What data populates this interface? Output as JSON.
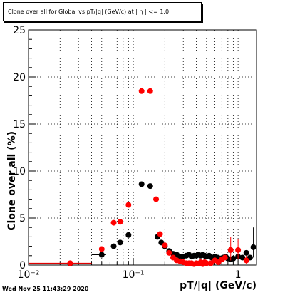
{
  "timestamp": "Wed Nov 25 11:43:29 2020",
  "chart_data": {
    "type": "scatter",
    "title": "Clone  over all for Global vs pT/|q| (GeV/c) at | η | <= 1.0",
    "xlabel": "pT/|q| (GeV/c)",
    "ylabel": "Clone  over all (%)",
    "x_scale": "log",
    "xlim": [
      0.01,
      1.5
    ],
    "ylim": [
      0,
      25
    ],
    "x_ticks": [
      {
        "value": 0.01,
        "label": "10⁻²"
      },
      {
        "value": 0.1,
        "label": "10⁻¹"
      },
      {
        "value": 1,
        "label": "1"
      }
    ],
    "y_ticks": [
      {
        "value": 0,
        "label": "0"
      },
      {
        "value": 5,
        "label": "5"
      },
      {
        "value": 10,
        "label": "10"
      },
      {
        "value": 15,
        "label": "15"
      },
      {
        "value": 20,
        "label": "20"
      },
      {
        "value": 25,
        "label": "25"
      }
    ],
    "grid": true,
    "series": [
      {
        "color": "#000000",
        "points": [
          {
            "x": 0.025,
            "y": 0.15,
            "xlo": 0.01,
            "xhi": 0.04
          },
          {
            "x": 0.05,
            "y": 1.1,
            "xlo": 0.04,
            "xhi": 0.055
          },
          {
            "x": 0.065,
            "y": 2.0
          },
          {
            "x": 0.075,
            "y": 2.4
          },
          {
            "x": 0.09,
            "y": 3.2
          },
          {
            "x": 0.12,
            "y": 8.6
          },
          {
            "x": 0.145,
            "y": 8.4
          },
          {
            "x": 0.17,
            "y": 3.0
          },
          {
            "x": 0.185,
            "y": 2.4
          },
          {
            "x": 0.2,
            "y": 2.0
          },
          {
            "x": 0.22,
            "y": 1.5
          },
          {
            "x": 0.24,
            "y": 1.2
          },
          {
            "x": 0.26,
            "y": 1.1
          },
          {
            "x": 0.28,
            "y": 0.9
          },
          {
            "x": 0.3,
            "y": 0.9
          },
          {
            "x": 0.32,
            "y": 1.0
          },
          {
            "x": 0.34,
            "y": 1.1
          },
          {
            "x": 0.36,
            "y": 0.9
          },
          {
            "x": 0.38,
            "y": 1.0
          },
          {
            "x": 0.4,
            "y": 1.0
          },
          {
            "x": 0.42,
            "y": 1.1
          },
          {
            "x": 0.44,
            "y": 1.0
          },
          {
            "x": 0.46,
            "y": 1.1
          },
          {
            "x": 0.48,
            "y": 1.0
          },
          {
            "x": 0.5,
            "y": 0.9
          },
          {
            "x": 0.53,
            "y": 1.0
          },
          {
            "x": 0.56,
            "y": 0.8
          },
          {
            "x": 0.6,
            "y": 0.9
          },
          {
            "x": 0.64,
            "y": 0.8
          },
          {
            "x": 0.68,
            "y": 0.7
          },
          {
            "x": 0.72,
            "y": 0.8
          },
          {
            "x": 0.76,
            "y": 0.9
          },
          {
            "x": 0.8,
            "y": 0.7
          },
          {
            "x": 0.85,
            "y": 0.6
          },
          {
            "x": 0.9,
            "y": 0.7
          },
          {
            "x": 1.0,
            "y": 0.9
          },
          {
            "x": 1.1,
            "y": 0.8
          },
          {
            "x": 1.2,
            "y": 1.3
          },
          {
            "x": 1.3,
            "y": 0.8
          },
          {
            "x": 1.4,
            "y": 1.9,
            "ylo": 0.8,
            "yhi": 4.0
          }
        ]
      },
      {
        "color": "#ff0000",
        "points": [
          {
            "x": 0.025,
            "y": 0.2,
            "xlo": 0.01,
            "xhi": 0.04
          },
          {
            "x": 0.05,
            "y": 1.7
          },
          {
            "x": 0.065,
            "y": 4.5
          },
          {
            "x": 0.075,
            "y": 4.6
          },
          {
            "x": 0.09,
            "y": 6.4
          },
          {
            "x": 0.12,
            "y": 18.5
          },
          {
            "x": 0.145,
            "y": 18.5
          },
          {
            "x": 0.165,
            "y": 7.0
          },
          {
            "x": 0.18,
            "y": 3.3
          },
          {
            "x": 0.2,
            "y": 2.1
          },
          {
            "x": 0.22,
            "y": 1.3
          },
          {
            "x": 0.24,
            "y": 0.8
          },
          {
            "x": 0.26,
            "y": 0.5
          },
          {
            "x": 0.28,
            "y": 0.4
          },
          {
            "x": 0.3,
            "y": 0.3
          },
          {
            "x": 0.32,
            "y": 0.2
          },
          {
            "x": 0.34,
            "y": 0.2
          },
          {
            "x": 0.36,
            "y": 0.2
          },
          {
            "x": 0.38,
            "y": 0.1
          },
          {
            "x": 0.4,
            "y": 0.2
          },
          {
            "x": 0.42,
            "y": 0.15
          },
          {
            "x": 0.44,
            "y": 0.3
          },
          {
            "x": 0.46,
            "y": 0.1
          },
          {
            "x": 0.48,
            "y": 0.3
          },
          {
            "x": 0.5,
            "y": 0.2
          },
          {
            "x": 0.55,
            "y": 0.2
          },
          {
            "x": 0.6,
            "y": 0.5
          },
          {
            "x": 0.65,
            "y": 0.3
          },
          {
            "x": 0.7,
            "y": 0.6
          },
          {
            "x": 0.75,
            "y": 0.8
          },
          {
            "x": 0.85,
            "y": 1.6,
            "ylo": 0.5,
            "yhi": 3.0
          },
          {
            "x": 1.0,
            "y": 1.6,
            "ylo": 0.6,
            "yhi": 2.8
          },
          {
            "x": 1.2,
            "y": 0.5,
            "ylo": 0.1,
            "yhi": 1.0
          }
        ]
      }
    ]
  }
}
